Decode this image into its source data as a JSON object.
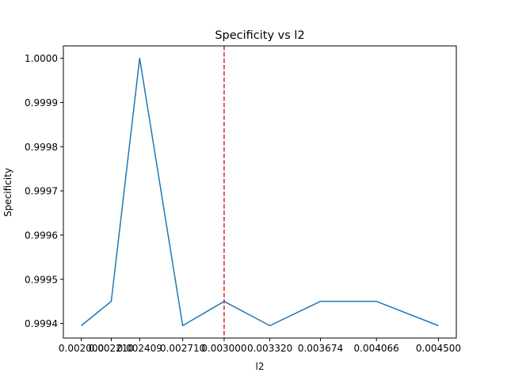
{
  "chart_data": {
    "type": "line",
    "title": "Specificity vs l2",
    "xlabel": "l2",
    "ylabel": "Specificity",
    "x": [
      0.002,
      0.00221,
      0.002409,
      0.00271,
      0.003,
      0.00332,
      0.003674,
      0.004066,
      0.0045
    ],
    "x_tick_labels": [
      "0.002000",
      "0.002210",
      "0.002409",
      "0.002710",
      "0.003000",
      "0.003320",
      "0.003674",
      "0.004066",
      "0.004500"
    ],
    "series": [
      {
        "values": [
          0.999395,
          0.99945,
          1.0,
          0.999395,
          0.99945,
          0.999395,
          0.99945,
          0.99945,
          0.999395
        ]
      }
    ],
    "y_ticks": [
      0.9994,
      0.9995,
      0.9996,
      0.9997,
      0.9998,
      0.9999,
      1.0
    ],
    "y_tick_labels": [
      "0.9994",
      "0.9995",
      "0.9996",
      "0.9997",
      "0.9998",
      "0.9999",
      "1.0000"
    ],
    "ylim": [
      0.999367,
      1.000028
    ],
    "vline": {
      "x": 0.003
    },
    "grid": false,
    "colors": {
      "line": "#1f77b4",
      "vline": "#d62728"
    }
  }
}
